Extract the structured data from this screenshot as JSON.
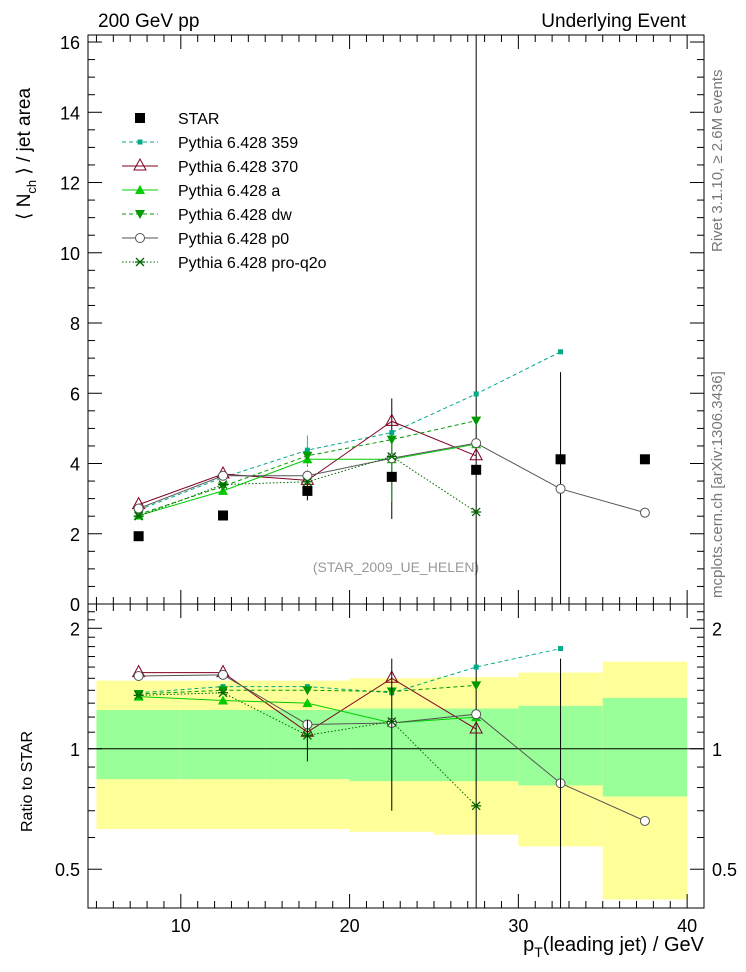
{
  "header": {
    "left": "200 GeV pp",
    "right": "Underlying Event"
  },
  "side_labels": {
    "top": "Rivet 3.1.10, ≥ 2.6M events",
    "bottom": "mcplots.cern.ch [arXiv:1306.3436]"
  },
  "watermark": "(STAR_2009_UE_HELEN)",
  "main_y_label": "⟨ N_ch ⟩ / jet area",
  "ratio_y_label": "Ratio to STAR",
  "x_label": "p_T(leading jet) / GeV",
  "colors": {
    "data": "#000000",
    "p359": "#00aa88",
    "p370": "#800020",
    "pa": "#00cc00",
    "pdw": "#009900",
    "pp0": "#555555",
    "pq2o": "#006600",
    "band_yellow": "#ffff99",
    "band_green": "#99ff99"
  },
  "chart_data": [
    {
      "type": "scatter",
      "panel": "main",
      "xlim": [
        4.5,
        41
      ],
      "ylim": [
        0,
        16.2
      ],
      "x_ticks": [
        10,
        20,
        30,
        40
      ],
      "y_ticks": [
        0,
        2,
        4,
        6,
        8,
        10,
        12,
        14,
        16
      ],
      "legend_placement": "top-left",
      "series": [
        {
          "name": "STAR",
          "key": "data",
          "style": "data",
          "x": [
            7.5,
            12.5,
            17.5,
            22.5,
            27.5,
            32.5,
            37.5
          ],
          "y": [
            1.93,
            2.52,
            3.22,
            3.62,
            3.82,
            4.12,
            4.12
          ]
        },
        {
          "name": "Pythia 6.428 359",
          "key": "p359",
          "style": "dash",
          "marker": "square",
          "x": [
            7.5,
            12.5,
            17.5,
            22.5,
            27.5,
            32.5
          ],
          "y": [
            2.68,
            3.6,
            4.38,
            4.88,
            5.98,
            7.18
          ]
        },
        {
          "name": "Pythia 6.428 370",
          "key": "p370",
          "style": "solid",
          "marker": "open-triangle",
          "x": [
            7.5,
            12.5,
            17.5,
            22.5,
            27.5
          ],
          "y": [
            2.83,
            3.7,
            3.52,
            5.2,
            4.22
          ]
        },
        {
          "name": "Pythia 6.428 a",
          "key": "pa",
          "style": "solid",
          "marker": "triangle",
          "x": [
            7.5,
            12.5,
            17.5,
            22.5,
            27.5
          ],
          "y": [
            2.52,
            3.22,
            4.12,
            4.12,
            4.55
          ]
        },
        {
          "name": "Pythia 6.428 dw",
          "key": "pdw",
          "style": "dash",
          "marker": "down-triangle",
          "x": [
            7.5,
            12.5,
            17.5,
            22.5,
            27.5
          ],
          "y": [
            2.55,
            3.35,
            4.22,
            4.68,
            5.22
          ]
        },
        {
          "name": "Pythia 6.428 p0",
          "key": "pp0",
          "style": "solid",
          "marker": "open-circle",
          "x": [
            7.5,
            12.5,
            17.5,
            22.5,
            27.5,
            32.5,
            37.5
          ],
          "y": [
            2.72,
            3.65,
            3.65,
            4.15,
            4.58,
            3.28,
            2.6
          ]
        },
        {
          "name": "Pythia 6.428 pro-q2o",
          "key": "pq2o",
          "style": "dot",
          "marker": "star",
          "x": [
            7.5,
            12.5,
            17.5,
            22.5,
            27.5
          ],
          "y": [
            2.5,
            3.4,
            3.48,
            4.2,
            2.62
          ]
        }
      ]
    },
    {
      "type": "scatter",
      "panel": "ratio",
      "log_y": true,
      "xlim": [
        4.5,
        41
      ],
      "ylim": [
        0.4,
        2.3
      ],
      "x_ticks": [
        10,
        20,
        30,
        40
      ],
      "y_ticks": [
        0.5,
        1,
        2
      ],
      "bands": {
        "bins": [
          5,
          10,
          15,
          20,
          25,
          30,
          35,
          40
        ],
        "yellow": [
          [
            0.63,
            1.48
          ],
          [
            0.63,
            1.48
          ],
          [
            0.63,
            1.48
          ],
          [
            0.62,
            1.5
          ],
          [
            0.61,
            1.51
          ],
          [
            0.57,
            1.55
          ],
          [
            0.42,
            1.65
          ]
        ],
        "green": [
          [
            0.84,
            1.25
          ],
          [
            0.84,
            1.25
          ],
          [
            0.84,
            1.25
          ],
          [
            0.83,
            1.26
          ],
          [
            0.83,
            1.26
          ],
          [
            0.81,
            1.28
          ],
          [
            0.76,
            1.34
          ]
        ]
      },
      "series": [
        {
          "name": "Pythia 6.428 359",
          "key": "p359",
          "x": [
            7.5,
            12.5,
            17.5,
            22.5,
            27.5,
            32.5
          ],
          "y": [
            1.38,
            1.43,
            1.43,
            1.38,
            1.6,
            1.78
          ]
        },
        {
          "name": "Pythia 6.428 370",
          "key": "p370",
          "x": [
            7.5,
            12.5,
            17.5,
            22.5,
            27.5
          ],
          "y": [
            1.55,
            1.55,
            1.1,
            1.5,
            1.12
          ]
        },
        {
          "name": "Pythia 6.428 a",
          "key": "pa",
          "x": [
            7.5,
            12.5,
            17.5,
            22.5,
            27.5
          ],
          "y": [
            1.35,
            1.32,
            1.3,
            1.16,
            1.2
          ]
        },
        {
          "name": "Pythia 6.428 dw",
          "key": "pdw",
          "x": [
            7.5,
            12.5,
            17.5,
            22.5,
            27.5
          ],
          "y": [
            1.37,
            1.4,
            1.4,
            1.39,
            1.44
          ]
        },
        {
          "name": "Pythia 6.428 p0",
          "key": "pp0",
          "x": [
            7.5,
            12.5,
            17.5,
            22.5,
            27.5,
            32.5,
            37.5
          ],
          "y": [
            1.52,
            1.53,
            1.15,
            1.16,
            1.22,
            0.82,
            0.66
          ]
        },
        {
          "name": "Pythia 6.428 pro-q2o",
          "key": "pq2o",
          "x": [
            7.5,
            12.5,
            17.5,
            22.5,
            27.5
          ],
          "y": [
            1.36,
            1.38,
            1.08,
            1.17,
            0.72
          ]
        }
      ]
    }
  ]
}
